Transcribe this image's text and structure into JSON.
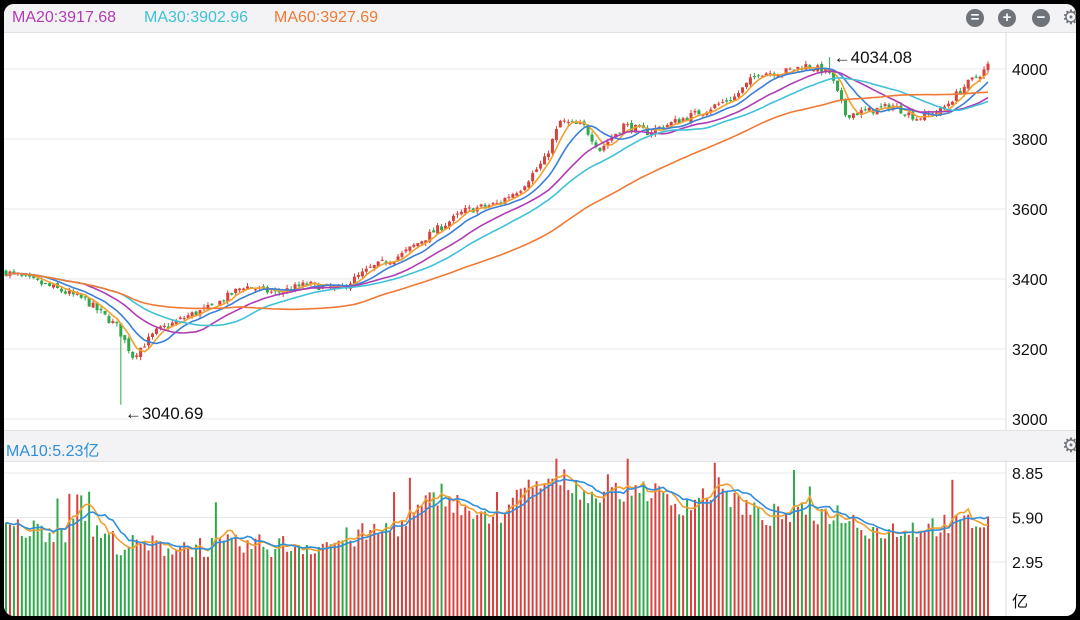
{
  "header": {
    "ma_labels": [
      {
        "text": "MA20:3917.68",
        "color": "#b03cb5"
      },
      {
        "text": "MA30:3902.96",
        "color": "#3fc2d8"
      },
      {
        "text": "MA60:3927.69",
        "color": "#f07a35"
      }
    ],
    "buttons": [
      {
        "icon": "collapse-icon",
        "glyph": "="
      },
      {
        "icon": "zoom-in-icon",
        "glyph": "+"
      },
      {
        "icon": "zoom-out-icon",
        "glyph": "−"
      }
    ],
    "settings_icon": "gear-icon"
  },
  "volume_header": {
    "ma_label": "MA10:5.23亿",
    "color": "#2f8fdc",
    "settings_icon": "gear-icon"
  },
  "chart_data": [
    {
      "type": "candlestick",
      "title": "",
      "yticks": [
        4000,
        3800,
        3600,
        3400,
        3200,
        3000
      ],
      "ylim": [
        2970,
        4080
      ],
      "grid": true,
      "annotations": [
        {
          "text": "←4034.08",
          "value": 4034.08,
          "kind": "high"
        },
        {
          "text": "←3040.69",
          "value": 3040.69,
          "kind": "low"
        }
      ],
      "series": [
        {
          "name": "MA20",
          "color": "#b03cb5",
          "last": 3917.68
        },
        {
          "name": "MA30",
          "color": "#3fc2d8",
          "last": 3902.96
        },
        {
          "name": "MA60",
          "color": "#f07a35",
          "last": 3927.69
        }
      ],
      "close_keypoints": [
        [
          0,
          3420
        ],
        [
          12,
          3375
        ],
        [
          20,
          3340
        ],
        [
          28,
          3265
        ],
        [
          32,
          3180
        ],
        [
          38,
          3250
        ],
        [
          46,
          3295
        ],
        [
          52,
          3320
        ],
        [
          60,
          3380
        ],
        [
          68,
          3360
        ],
        [
          76,
          3385
        ],
        [
          84,
          3370
        ],
        [
          92,
          3430
        ],
        [
          100,
          3470
        ],
        [
          108,
          3535
        ],
        [
          116,
          3595
        ],
        [
          124,
          3615
        ],
        [
          130,
          3660
        ],
        [
          136,
          3740
        ],
        [
          140,
          3850
        ],
        [
          146,
          3835
        ],
        [
          150,
          3770
        ],
        [
          156,
          3840
        ],
        [
          162,
          3820
        ],
        [
          168,
          3845
        ],
        [
          176,
          3880
        ],
        [
          184,
          3920
        ],
        [
          190,
          3990
        ],
        [
          196,
          3990
        ],
        [
          202,
          4010
        ],
        [
          208,
          3990
        ],
        [
          212,
          3870
        ],
        [
          218,
          3880
        ],
        [
          224,
          3895
        ],
        [
          230,
          3860
        ],
        [
          236,
          3880
        ],
        [
          242,
          3950
        ],
        [
          247,
          3995
        ],
        [
          248,
          4010
        ]
      ]
    },
    {
      "type": "bar",
      "title": "",
      "unit": "亿",
      "yticks": [
        8.85,
        5.9,
        2.95
      ],
      "ylim": [
        0,
        9.9
      ],
      "series": [
        {
          "name": "MA10",
          "color": "#2f8fdc",
          "last": 5.23
        }
      ],
      "volume_keypoints": [
        [
          0,
          5.2
        ],
        [
          15,
          5.0
        ],
        [
          18,
          7.2
        ],
        [
          22,
          5.0
        ],
        [
          30,
          4.0
        ],
        [
          60,
          4.0
        ],
        [
          80,
          4.1
        ],
        [
          100,
          5.4
        ],
        [
          110,
          7.6
        ],
        [
          116,
          6.4
        ],
        [
          122,
          5.5
        ],
        [
          132,
          7.8
        ],
        [
          140,
          8.5
        ],
        [
          150,
          7.2
        ],
        [
          160,
          8.0
        ],
        [
          170,
          6.7
        ],
        [
          180,
          7.8
        ],
        [
          190,
          6.0
        ],
        [
          210,
          6.2
        ],
        [
          220,
          5.0
        ],
        [
          235,
          5.4
        ],
        [
          248,
          5.6
        ]
      ]
    }
  ]
}
